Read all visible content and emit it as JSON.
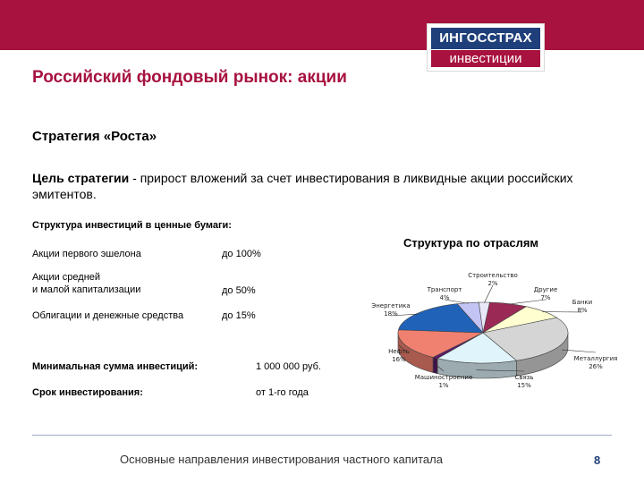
{
  "logo": {
    "top": "ИНГОССТРАХ",
    "bottom": "инвестиции"
  },
  "title": "Российский фондовый рынок: акции",
  "strategy_title": "Стратегия «Роста»",
  "goal": {
    "bold": "Цель стратегии",
    "text": " - прирост вложений за счет инвестирования в ликвидные акции российских эмитентов."
  },
  "structure_title": "Структура инвестиций в ценные бумаги:",
  "allocation": [
    {
      "label": "Акции первого эшелона",
      "value": "до 100%"
    },
    {
      "label": "Акции средней\nи малой капитализации",
      "value": "до 50%"
    },
    {
      "label": "Облигации и денежные средства",
      "value": "до 15%"
    }
  ],
  "min_investment": {
    "label": "Минимальная сумма инвестиций:",
    "value": "1 000 000 руб."
  },
  "term": {
    "label": "Срок инвестирования:",
    "value": "от 1-го года"
  },
  "chart_title": "Структура по отраслям",
  "footer": "Основные направления инвестирования частного капитала",
  "page_number": "8",
  "colors": {
    "brand": "#a7123f",
    "navy": "#1f3f7a"
  },
  "chart_data": {
    "type": "pie",
    "title": "Структура по отраслям",
    "slices": [
      {
        "label": "Строительство",
        "value": 2,
        "color": "#e8e8f8"
      },
      {
        "label": "Другие",
        "value": 7,
        "color": "#9a2a55"
      },
      {
        "label": "Банки",
        "value": 8,
        "color": "#fffed0"
      },
      {
        "label": "Металлургия",
        "value": 26,
        "color": "#d5d5d5"
      },
      {
        "label": "Связь",
        "value": 15,
        "color": "#dff4fb"
      },
      {
        "label": "Машиностроение",
        "value": 1,
        "color": "#5a1a6a"
      },
      {
        "label": "Нефть",
        "value": 16,
        "color": "#f08070"
      },
      {
        "label": "Энергетика",
        "value": 18,
        "color": "#1f62b8"
      },
      {
        "label": "Транспорт",
        "value": 4,
        "color": "#c4c4f4"
      }
    ]
  }
}
